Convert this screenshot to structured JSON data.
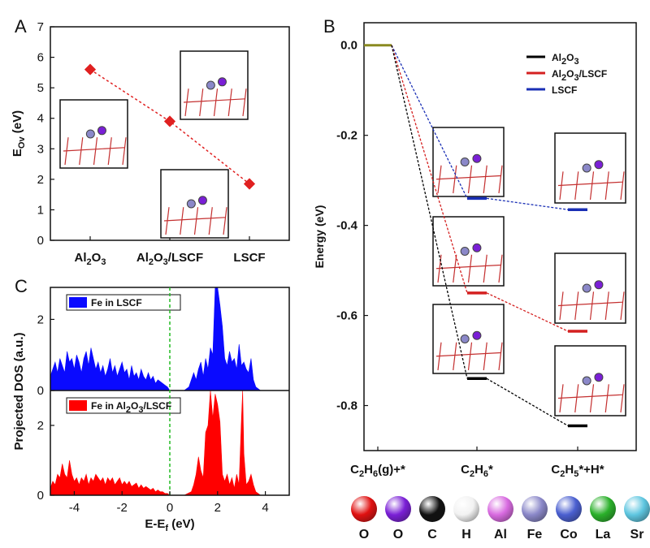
{
  "chart_data": [
    {
      "panel": "A",
      "type": "scatter",
      "ylabel": "E",
      "ylabel_sub": "Ov",
      "ylabel_unit": " (eV)",
      "ylim": [
        0,
        7
      ],
      "yticks": [
        0,
        1,
        2,
        3,
        4,
        5,
        6,
        7
      ],
      "categories": [
        {
          "main": "Al",
          "sub1": "2",
          "mid": "O",
          "sub2": "3",
          "tail": ""
        },
        {
          "main": "Al",
          "sub1": "2",
          "mid": "O",
          "sub2": "3",
          "tail": "/LSCF"
        },
        {
          "main": "LSCF",
          "sub1": "",
          "mid": "",
          "sub2": "",
          "tail": ""
        }
      ],
      "values": [
        5.6,
        3.9,
        1.85
      ],
      "marker_color": "#e02020",
      "trend_line": "dashed"
    },
    {
      "panel": "B",
      "type": "line",
      "ylabel": "Energy (eV)",
      "ylim": [
        -0.9,
        0.05
      ],
      "yticks": [
        0.0,
        -0.2,
        -0.4,
        -0.6,
        -0.8
      ],
      "ytick_labels": [
        "0.0",
        "-0.2",
        "-0.4",
        "-0.6",
        "-0.8"
      ],
      "categories": [
        {
          "main": "C",
          "sub1": "2",
          "mid": "H",
          "sub2": "6",
          "tail": "(g)+*"
        },
        {
          "main": "C",
          "sub1": "2",
          "mid": "H",
          "sub2": "6",
          "tail": "*"
        },
        {
          "main": "C",
          "sub1": "2",
          "mid": "H",
          "sub2": "5",
          "tail": "*+H*"
        }
      ],
      "series": [
        {
          "name": "LSCF",
          "legend": {
            "main": "LSCF",
            "sub1": "",
            "mid": "",
            "sub2": "",
            "tail": ""
          },
          "color": "#1a2fb5",
          "values": [
            0.0,
            -0.34,
            -0.365
          ]
        },
        {
          "name": "Al2O3/LSCF",
          "legend": {
            "main": "Al",
            "sub1": "2",
            "mid": "O",
            "sub2": "3",
            "tail": "/LSCF"
          },
          "color": "#d42020",
          "values": [
            0.0,
            -0.55,
            -0.635
          ]
        },
        {
          "name": "Al2O3",
          "legend": {
            "main": "Al",
            "sub1": "2",
            "mid": "O",
            "sub2": "3",
            "tail": ""
          },
          "color": "#000000",
          "values": [
            0.0,
            -0.74,
            -0.845
          ]
        }
      ],
      "legend_order": [
        "Al2O3",
        "Al2O3/LSCF",
        "LSCF"
      ],
      "initial_state_color": "#8a8a20"
    },
    {
      "panel": "C",
      "type": "area",
      "xlabel": "E-E",
      "xlabel_sub": "f",
      "xlabel_unit": " (eV)",
      "ylabel": "Projected DOS (a.u.)",
      "xlim": [
        -5,
        5
      ],
      "xticks": [
        -4,
        -2,
        0,
        2,
        4
      ],
      "xtick_labels": [
        "-4",
        "-2",
        "0",
        "2",
        "4"
      ],
      "fermi_line_x": 0,
      "fermi_color": "#22bb22",
      "series": [
        {
          "name": "Fe in LSCF",
          "legend": {
            "main": "Fe in LSCF",
            "sub1": "",
            "mid": "",
            "sub2": "",
            "tail": ""
          },
          "color": "#0a0aff",
          "ylim": [
            0,
            2.9
          ],
          "yticks": [
            0,
            2
          ],
          "x": [
            -5.0,
            -4.9,
            -4.8,
            -4.7,
            -4.6,
            -4.5,
            -4.4,
            -4.3,
            -4.2,
            -4.1,
            -4.0,
            -3.9,
            -3.8,
            -3.7,
            -3.6,
            -3.5,
            -3.4,
            -3.3,
            -3.2,
            -3.1,
            -3.0,
            -2.9,
            -2.8,
            -2.7,
            -2.6,
            -2.5,
            -2.4,
            -2.3,
            -2.2,
            -2.1,
            -2.0,
            -1.9,
            -1.8,
            -1.7,
            -1.6,
            -1.5,
            -1.4,
            -1.3,
            -1.2,
            -1.1,
            -1.0,
            -0.9,
            -0.8,
            -0.7,
            -0.6,
            -0.5,
            -0.4,
            -0.3,
            -0.2,
            -0.1,
            0.0,
            0.2,
            0.4,
            0.6,
            0.8,
            1.0,
            1.1,
            1.2,
            1.3,
            1.4,
            1.5,
            1.6,
            1.7,
            1.8,
            1.9,
            2.0,
            2.1,
            2.2,
            2.3,
            2.4,
            2.5,
            2.6,
            2.7,
            2.8,
            2.9,
            3.0,
            3.1,
            3.2,
            3.3,
            3.4,
            3.5,
            3.6,
            3.7,
            3.8,
            4.0,
            5.0
          ],
          "values": [
            0.4,
            0.6,
            0.8,
            0.5,
            0.9,
            0.7,
            0.5,
            1.1,
            0.8,
            0.9,
            0.6,
            1.0,
            0.8,
            0.5,
            0.9,
            1.1,
            0.7,
            1.2,
            0.9,
            0.6,
            0.8,
            0.5,
            0.7,
            0.4,
            0.6,
            0.9,
            0.5,
            0.7,
            0.4,
            0.6,
            0.8,
            0.5,
            0.6,
            0.3,
            0.7,
            0.4,
            0.5,
            0.3,
            0.6,
            0.4,
            0.3,
            0.5,
            0.3,
            0.4,
            0.2,
            0.3,
            0.25,
            0.2,
            0.15,
            0.1,
            0.0,
            0.0,
            0.0,
            0.0,
            0.1,
            0.5,
            0.3,
            0.6,
            0.8,
            0.4,
            0.9,
            0.6,
            1.2,
            1.0,
            2.9,
            2.9,
            2.4,
            1.8,
            0.9,
            0.7,
            1.1,
            0.8,
            0.9,
            0.6,
            1.3,
            0.7,
            0.8,
            0.6,
            0.5,
            0.9,
            0.3,
            0.1,
            0.05,
            0.0,
            0.0,
            0.0
          ]
        },
        {
          "name": "Fe in Al2O3/LSCF",
          "legend": {
            "main": "Fe in Al",
            "sub1": "2",
            "mid": "O",
            "sub2": "3",
            "tail": "/LSCF"
          },
          "color": "#ff0000",
          "ylim": [
            0,
            3.0
          ],
          "yticks": [
            0,
            2
          ],
          "x": [
            -5.0,
            -4.9,
            -4.8,
            -4.7,
            -4.6,
            -4.5,
            -4.4,
            -4.3,
            -4.2,
            -4.1,
            -4.0,
            -3.9,
            -3.8,
            -3.7,
            -3.6,
            -3.5,
            -3.4,
            -3.3,
            -3.2,
            -3.1,
            -3.0,
            -2.9,
            -2.8,
            -2.7,
            -2.6,
            -2.5,
            -2.4,
            -2.3,
            -2.2,
            -2.1,
            -2.0,
            -1.9,
            -1.8,
            -1.7,
            -1.6,
            -1.5,
            -1.4,
            -1.3,
            -1.2,
            -1.1,
            -1.0,
            -0.9,
            -0.8,
            -0.7,
            -0.6,
            -0.5,
            -0.4,
            -0.3,
            -0.2,
            -0.1,
            0.0,
            0.3,
            0.6,
            0.9,
            1.0,
            1.1,
            1.2,
            1.3,
            1.4,
            1.5,
            1.6,
            1.7,
            1.8,
            1.9,
            2.0,
            2.1,
            2.2,
            2.3,
            2.4,
            2.5,
            2.6,
            2.7,
            2.8,
            2.9,
            3.0,
            3.05,
            3.1,
            3.2,
            3.3,
            3.4,
            3.5,
            3.6,
            3.7,
            3.8,
            4.0,
            5.0
          ],
          "values": [
            0.2,
            0.4,
            0.3,
            0.6,
            0.5,
            0.9,
            0.6,
            0.5,
            1.0,
            0.6,
            0.4,
            0.5,
            0.3,
            0.5,
            0.4,
            0.6,
            0.3,
            0.5,
            0.4,
            0.6,
            0.5,
            0.4,
            0.5,
            0.3,
            0.5,
            0.4,
            0.5,
            0.3,
            0.4,
            0.5,
            0.3,
            0.4,
            0.3,
            0.4,
            0.25,
            0.3,
            0.35,
            0.2,
            0.3,
            0.2,
            0.25,
            0.2,
            0.15,
            0.2,
            0.1,
            0.15,
            0.1,
            0.1,
            0.05,
            0.05,
            0.0,
            0.0,
            0.0,
            0.1,
            0.3,
            0.6,
            1.1,
            0.7,
            0.5,
            1.8,
            2.0,
            3.0,
            2.2,
            2.9,
            2.6,
            2.1,
            0.6,
            0.4,
            0.6,
            0.3,
            0.5,
            0.2,
            0.6,
            0.3,
            2.2,
            3.0,
            1.2,
            0.3,
            0.4,
            0.6,
            0.3,
            0.1,
            0.05,
            0.0,
            0.0,
            0.0
          ]
        }
      ]
    }
  ],
  "panels": {
    "a": "A",
    "b": "B",
    "c": "C"
  },
  "atom_legend": [
    {
      "label": "O",
      "color": "#e01010"
    },
    {
      "label": "O",
      "color": "#7a1fd6"
    },
    {
      "label": "C",
      "color": "#111111"
    },
    {
      "label": "H",
      "color": "#f2f2f2"
    },
    {
      "label": "Al",
      "color": "#d86ae0"
    },
    {
      "label": "Fe",
      "color": "#8b88c9"
    },
    {
      "label": "Co",
      "color": "#4a5fd0"
    },
    {
      "label": "La",
      "color": "#2ab02a"
    },
    {
      "label": "Sr",
      "color": "#5ec6e0"
    }
  ]
}
